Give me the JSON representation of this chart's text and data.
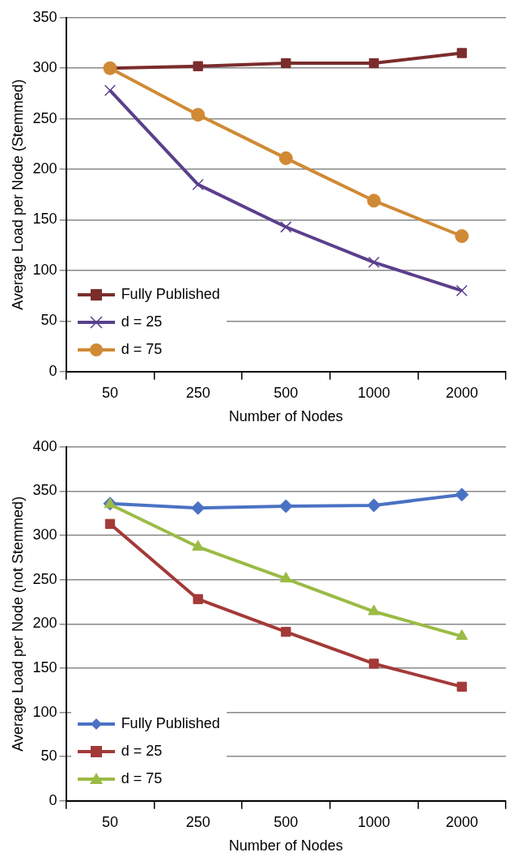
{
  "chart_data": [
    {
      "type": "line",
      "xlabel": "Number of Nodes",
      "ylabel": "Average Load per Node (Stemmed)",
      "categories": [
        "50",
        "250",
        "500",
        "1000",
        "2000"
      ],
      "ylim": [
        0,
        350
      ],
      "yticks": [
        0,
        50,
        100,
        150,
        200,
        250,
        300,
        350
      ],
      "grid": "y",
      "legend": "bottom left",
      "series": [
        {
          "name": "Fully Published",
          "color": "#7b2c2c",
          "marker": "square",
          "values": [
            300,
            302,
            305,
            305,
            315
          ]
        },
        {
          "name": "d = 25",
          "color": "#5b3f8c",
          "marker": "cross",
          "values": [
            278,
            185,
            143,
            108,
            80
          ]
        },
        {
          "name": "d = 75",
          "color": "#d08a35",
          "marker": "circle",
          "values": [
            300,
            254,
            211,
            169,
            134
          ]
        }
      ]
    },
    {
      "type": "line",
      "xlabel": "Number of Nodes",
      "ylabel": "Average Load per Node (not Stemmed)",
      "categories": [
        "50",
        "250",
        "500",
        "1000",
        "2000"
      ],
      "ylim": [
        0,
        400
      ],
      "yticks": [
        0,
        50,
        100,
        150,
        200,
        250,
        300,
        350,
        400
      ],
      "grid": "y",
      "legend": "bottom left",
      "series": [
        {
          "name": "Fully Published",
          "color": "#4a72c4",
          "marker": "diamond",
          "values": [
            336,
            331,
            333,
            334,
            346
          ]
        },
        {
          "name": "d = 25",
          "color": "#a33a38",
          "marker": "square",
          "values": [
            313,
            228,
            191,
            155,
            129
          ]
        },
        {
          "name": "d = 75",
          "color": "#9bbb45",
          "marker": "triangle",
          "values": [
            335,
            287,
            251,
            214,
            186
          ]
        }
      ]
    }
  ]
}
